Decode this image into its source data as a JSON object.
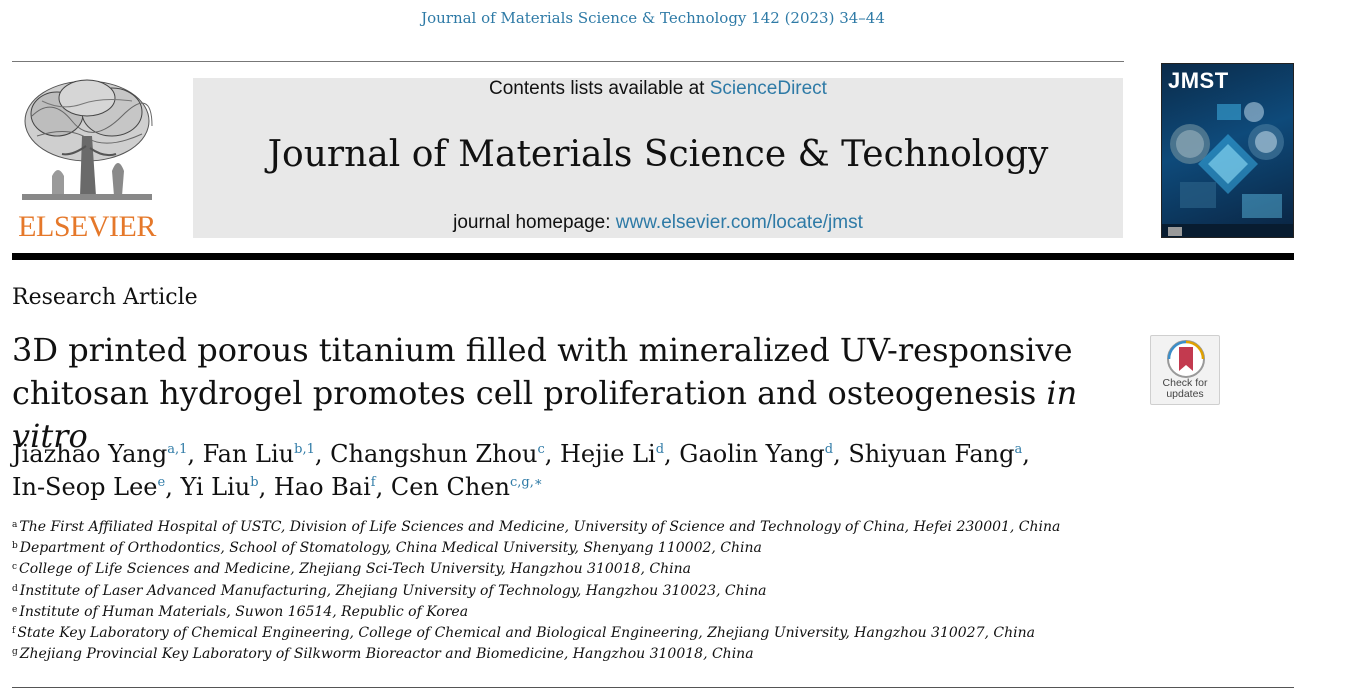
{
  "header": {
    "citation": "Journal of Materials Science & Technology 142 (2023) 34–44",
    "publisher": "ELSEVIER",
    "contents_prefix": "Contents lists available at",
    "contents_link": "ScienceDirect",
    "journal_name": "Journal of Materials Science & Technology",
    "homepage_prefix": "journal homepage:",
    "homepage_link": "www.elsevier.com/locate/jmst",
    "cover_title": "JMST"
  },
  "article": {
    "type": "Research Article",
    "title_line1": "3D printed porous titanium filled with mineralized UV-responsive",
    "title_line2": "chitosan hydrogel promotes cell proliferation and osteogenesis",
    "title_italic": "in vitro",
    "check_label_1": "Check for",
    "check_label_2": "updates"
  },
  "authors": [
    {
      "name": "Jiazhao Yang",
      "sup": "a,1",
      "sep": ", "
    },
    {
      "name": "Fan Liu",
      "sup": "b,1",
      "sep": ", "
    },
    {
      "name": "Changshun Zhou",
      "sup": "c",
      "sep": ", "
    },
    {
      "name": "Hejie Li",
      "sup": "d",
      "sep": ", "
    },
    {
      "name": "Gaolin Yang",
      "sup": "d",
      "sep": ", "
    },
    {
      "name": "Shiyuan Fang",
      "sup": "a",
      "sep": ","
    },
    {
      "name": "In-Seop Lee",
      "sup": "e",
      "sep": ", "
    },
    {
      "name": "Yi Liu",
      "sup": "b",
      "sep": ", "
    },
    {
      "name": "Hao Bai",
      "sup": "f",
      "sep": ", "
    },
    {
      "name": "Cen Chen",
      "sup": "c,g,∗",
      "sep": ""
    }
  ],
  "affiliations": [
    {
      "mark": "a",
      "text": "The First Affiliated Hospital of USTC, Division of Life Sciences and Medicine, University of Science and Technology of China, Hefei 230001, China"
    },
    {
      "mark": "b",
      "text": "Department of Orthodontics, School of Stomatology, China Medical University, Shenyang 110002, China"
    },
    {
      "mark": "c",
      "text": "College of Life Sciences and Medicine, Zhejiang Sci-Tech University, Hangzhou 310018, China"
    },
    {
      "mark": "d",
      "text": "Institute of Laser Advanced Manufacturing, Zhejiang University of Technology, Hangzhou 310023, China"
    },
    {
      "mark": "e",
      "text": "Institute of Human Materials, Suwon 16514, Republic of Korea"
    },
    {
      "mark": "f",
      "text": "State Key Laboratory of Chemical Engineering, College of Chemical and Biological Engineering, Zhejiang University, Hangzhou 310027, China"
    },
    {
      "mark": "g",
      "text": "Zhejiang Provincial Key Laboratory of Silkworm Bioreactor and Biomedicine, Hangzhou 310018, China"
    }
  ],
  "colors": {
    "link": "#2e7aa6",
    "elsevier_orange": "#e5782a",
    "masthead_gray": "#e8e8e8"
  },
  "icons": {
    "logo": "elsevier-tree-icon",
    "cover": "journal-cover-icon",
    "badge": "bookmark-icon"
  }
}
